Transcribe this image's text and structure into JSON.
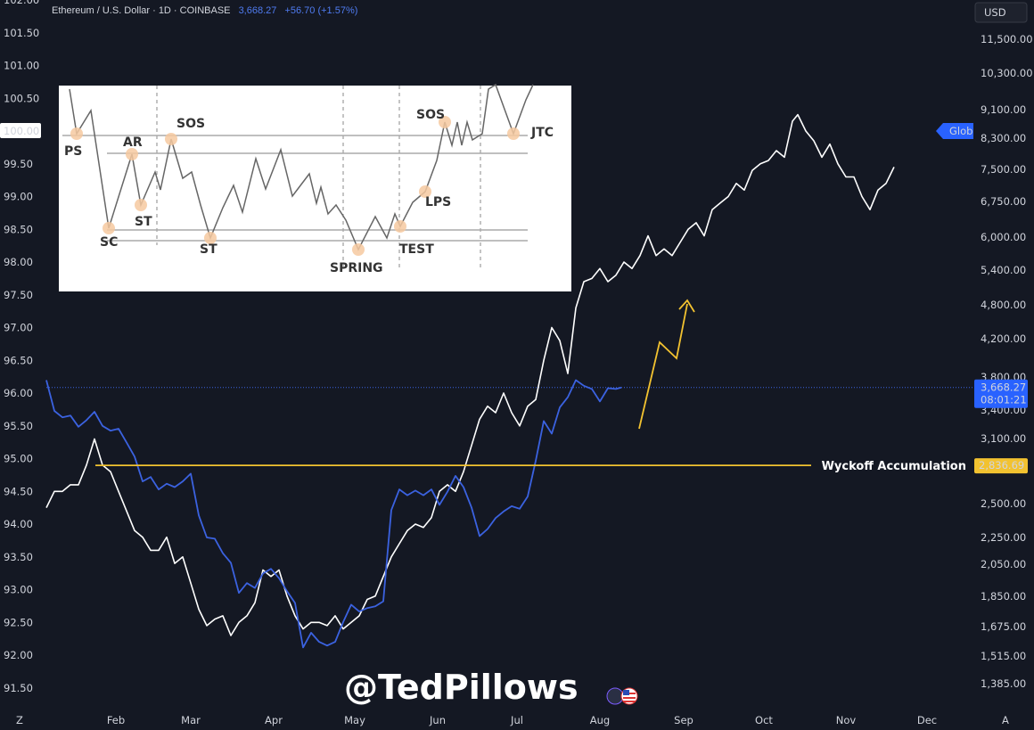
{
  "header": {
    "symbol": "Ethereum / U.S. Dollar · 1D · COINBASE",
    "price": "3,668.27",
    "change": "+56.70 (+1.57%)"
  },
  "currency_button": "USD",
  "global_tag": "Glob",
  "watermark": "@TedPillows",
  "corner_left": "Z",
  "corner_right": "A",
  "colors": {
    "background": "#141823",
    "eth_line": "#3b62e0",
    "dxy_line": "#ffffff",
    "level_line": "#f2c230",
    "arrow": "#f2c230"
  },
  "chart_data": {
    "type": "line",
    "x_ticks": [
      "Feb",
      "Mar",
      "Apr",
      "May",
      "Jun",
      "Jul",
      "Aug",
      "Sep",
      "Oct",
      "Nov",
      "Dec"
    ],
    "left_axis_ticks": [
      "102.00",
      "101.50",
      "101.00",
      "100.50",
      "100.00",
      "99.50",
      "99.00",
      "98.50",
      "98.00",
      "97.50",
      "97.00",
      "96.50",
      "96.00",
      "95.50",
      "95.00",
      "94.50",
      "94.00",
      "93.50",
      "93.00",
      "92.50",
      "92.00",
      "91.50"
    ],
    "left_axis_highlight": "100.00",
    "right_axis_ticks": [
      "11,500.00",
      "10,300.00",
      "9,100.00",
      "8,300.00",
      "7,500.00",
      "6,750.00",
      "6,000.00",
      "5,400.00",
      "4,800.00",
      "4,200.00",
      "3,800.00",
      "3,400.00",
      "3,100.00",
      "2,500.00",
      "2,250.00",
      "2,050.00",
      "1,850.00",
      "1,675.00",
      "1,515.00",
      "1,385.00"
    ],
    "current_price": {
      "value": 3668.27,
      "label": "3,668.27",
      "countdown": "08:01:21"
    },
    "level": {
      "value": 2836.69,
      "label": "2,836.69",
      "name": "Wyckoff Accumulation"
    },
    "series": [
      {
        "name": "ETH/USD",
        "axis": "right",
        "points": [
          [
            0,
            3760
          ],
          [
            3,
            3390
          ],
          [
            6,
            3320
          ],
          [
            9,
            3340
          ],
          [
            12,
            3220
          ],
          [
            15,
            3290
          ],
          [
            18,
            3380
          ],
          [
            21,
            3230
          ],
          [
            24,
            3180
          ],
          [
            27,
            3200
          ],
          [
            30,
            3060
          ],
          [
            33,
            2920
          ],
          [
            36,
            2690
          ],
          [
            39,
            2730
          ],
          [
            42,
            2620
          ],
          [
            45,
            2670
          ],
          [
            48,
            2640
          ],
          [
            51,
            2690
          ],
          [
            54,
            2760
          ],
          [
            57,
            2410
          ],
          [
            60,
            2250
          ],
          [
            63,
            2240
          ],
          [
            66,
            2130
          ],
          [
            69,
            2060
          ],
          [
            72,
            1870
          ],
          [
            75,
            1930
          ],
          [
            78,
            1900
          ],
          [
            81,
            1990
          ],
          [
            84,
            2020
          ],
          [
            87,
            1960
          ],
          [
            90,
            1880
          ],
          [
            93,
            1810
          ],
          [
            96,
            1560
          ],
          [
            99,
            1640
          ],
          [
            102,
            1590
          ],
          [
            105,
            1570
          ],
          [
            108,
            1590
          ],
          [
            111,
            1700
          ],
          [
            114,
            1800
          ],
          [
            117,
            1760
          ],
          [
            120,
            1780
          ],
          [
            123,
            1790
          ],
          [
            126,
            1820
          ],
          [
            129,
            2450
          ],
          [
            132,
            2620
          ],
          [
            135,
            2570
          ],
          [
            138,
            2610
          ],
          [
            141,
            2570
          ],
          [
            144,
            2620
          ],
          [
            147,
            2490
          ],
          [
            150,
            2600
          ],
          [
            153,
            2740
          ],
          [
            156,
            2640
          ],
          [
            159,
            2470
          ],
          [
            162,
            2260
          ],
          [
            165,
            2310
          ],
          [
            168,
            2390
          ],
          [
            171,
            2440
          ],
          [
            174,
            2480
          ],
          [
            177,
            2460
          ],
          [
            180,
            2560
          ],
          [
            183,
            2880
          ],
          [
            186,
            3280
          ],
          [
            189,
            3150
          ],
          [
            192,
            3430
          ],
          [
            195,
            3550
          ],
          [
            198,
            3760
          ],
          [
            201,
            3690
          ],
          [
            204,
            3650
          ],
          [
            207,
            3500
          ],
          [
            210,
            3660
          ],
          [
            213,
            3650
          ],
          [
            215,
            3668
          ]
        ]
      },
      {
        "name": "DXY",
        "axis": "left",
        "points": [
          [
            0,
            94.25
          ],
          [
            3,
            94.5
          ],
          [
            6,
            94.5
          ],
          [
            9,
            94.6
          ],
          [
            12,
            94.6
          ],
          [
            15,
            94.9
          ],
          [
            18,
            95.3
          ],
          [
            21,
            94.9
          ],
          [
            24,
            94.8
          ],
          [
            27,
            94.5
          ],
          [
            30,
            94.2
          ],
          [
            33,
            93.9
          ],
          [
            36,
            93.8
          ],
          [
            39,
            93.6
          ],
          [
            42,
            93.6
          ],
          [
            45,
            93.8
          ],
          [
            48,
            93.4
          ],
          [
            51,
            93.5
          ],
          [
            54,
            93.1
          ],
          [
            57,
            92.7
          ],
          [
            60,
            92.45
          ],
          [
            63,
            92.55
          ],
          [
            66,
            92.6
          ],
          [
            69,
            92.3
          ],
          [
            72,
            92.5
          ],
          [
            75,
            92.6
          ],
          [
            78,
            92.8
          ],
          [
            81,
            93.3
          ],
          [
            84,
            93.2
          ],
          [
            87,
            93.3
          ],
          [
            90,
            92.9
          ],
          [
            93,
            92.6
          ],
          [
            96,
            92.4
          ],
          [
            99,
            92.5
          ],
          [
            102,
            92.5
          ],
          [
            105,
            92.45
          ],
          [
            108,
            92.6
          ],
          [
            111,
            92.4
          ],
          [
            114,
            92.5
          ],
          [
            117,
            92.6
          ],
          [
            120,
            92.85
          ],
          [
            123,
            92.9
          ],
          [
            126,
            93.2
          ],
          [
            129,
            93.5
          ],
          [
            132,
            93.7
          ],
          [
            135,
            93.9
          ],
          [
            138,
            94.0
          ],
          [
            141,
            93.95
          ],
          [
            144,
            94.1
          ],
          [
            147,
            94.5
          ],
          [
            150,
            94.6
          ],
          [
            153,
            94.5
          ],
          [
            156,
            94.8
          ],
          [
            159,
            95.2
          ],
          [
            162,
            95.6
          ],
          [
            165,
            95.8
          ],
          [
            168,
            95.7
          ],
          [
            171,
            96.0
          ],
          [
            174,
            95.7
          ],
          [
            177,
            95.5
          ],
          [
            180,
            95.8
          ],
          [
            183,
            95.9
          ],
          [
            186,
            96.5
          ],
          [
            189,
            97.0
          ],
          [
            192,
            96.8
          ],
          [
            195,
            96.3
          ],
          [
            198,
            97.3
          ],
          [
            201,
            97.7
          ],
          [
            204,
            97.75
          ],
          [
            207,
            97.9
          ],
          [
            210,
            97.7
          ],
          [
            213,
            97.8
          ],
          [
            216,
            98.0
          ],
          [
            219,
            97.9
          ],
          [
            222,
            98.1
          ],
          [
            225,
            98.4
          ],
          [
            228,
            98.1
          ],
          [
            231,
            98.2
          ],
          [
            234,
            98.1
          ],
          [
            237,
            98.3
          ],
          [
            240,
            98.5
          ],
          [
            243,
            98.6
          ],
          [
            246,
            98.4
          ],
          [
            249,
            98.8
          ],
          [
            252,
            98.9
          ],
          [
            255,
            99.0
          ],
          [
            258,
            99.2
          ],
          [
            261,
            99.1
          ],
          [
            264,
            99.4
          ],
          [
            267,
            99.5
          ],
          [
            270,
            99.55
          ],
          [
            273,
            99.7
          ],
          [
            276,
            99.6
          ],
          [
            279,
            100.15
          ],
          [
            281,
            100.25
          ],
          [
            284,
            100.0
          ],
          [
            287,
            99.85
          ],
          [
            290,
            99.6
          ],
          [
            293,
            99.8
          ],
          [
            296,
            99.5
          ],
          [
            299,
            99.3
          ],
          [
            302,
            99.3
          ],
          [
            305,
            99.0
          ],
          [
            308,
            98.8
          ],
          [
            311,
            99.1
          ],
          [
            314,
            99.2
          ],
          [
            317,
            99.45
          ]
        ]
      }
    ],
    "projection_arrow": "up",
    "annotations": [
      "Wyckoff Accumulation"
    ],
    "inset_labels": [
      "PS",
      "AR",
      "SOS",
      "SC",
      "ST",
      "ST",
      "SPRING",
      "TEST",
      "SOS",
      "LPS",
      "JTC"
    ]
  }
}
